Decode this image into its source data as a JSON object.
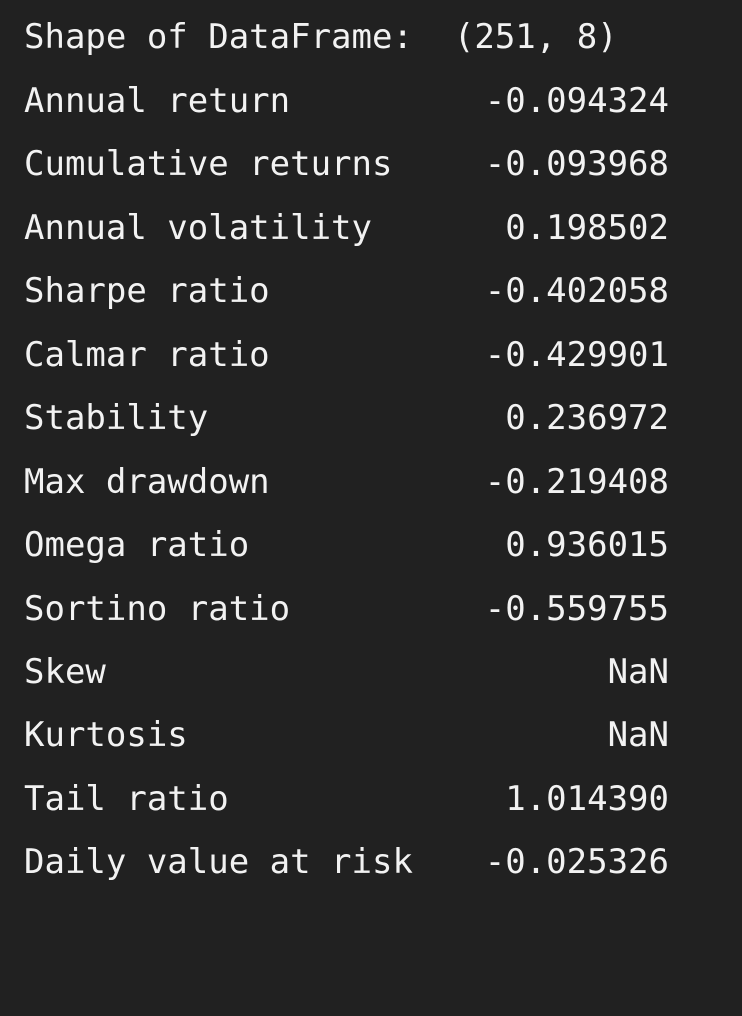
{
  "shape_line": {
    "label": "Shape of DataFrame:",
    "value": "(251, 8)"
  },
  "stats": [
    {
      "label": "Annual return",
      "value": "-0.094324"
    },
    {
      "label": "Cumulative returns",
      "value": "-0.093968"
    },
    {
      "label": "Annual volatility",
      "value": "0.198502"
    },
    {
      "label": "Sharpe ratio",
      "value": "-0.402058"
    },
    {
      "label": "Calmar ratio",
      "value": "-0.429901"
    },
    {
      "label": "Stability",
      "value": "0.236972"
    },
    {
      "label": "Max drawdown",
      "value": "-0.219408"
    },
    {
      "label": "Omega ratio",
      "value": "0.936015"
    },
    {
      "label": "Sortino ratio",
      "value": "-0.559755"
    },
    {
      "label": "Skew",
      "value": "NaN"
    },
    {
      "label": "Kurtosis",
      "value": "NaN"
    },
    {
      "label": "Tail ratio",
      "value": "1.014390"
    },
    {
      "label": "Daily value at risk",
      "value": "-0.025326"
    }
  ]
}
